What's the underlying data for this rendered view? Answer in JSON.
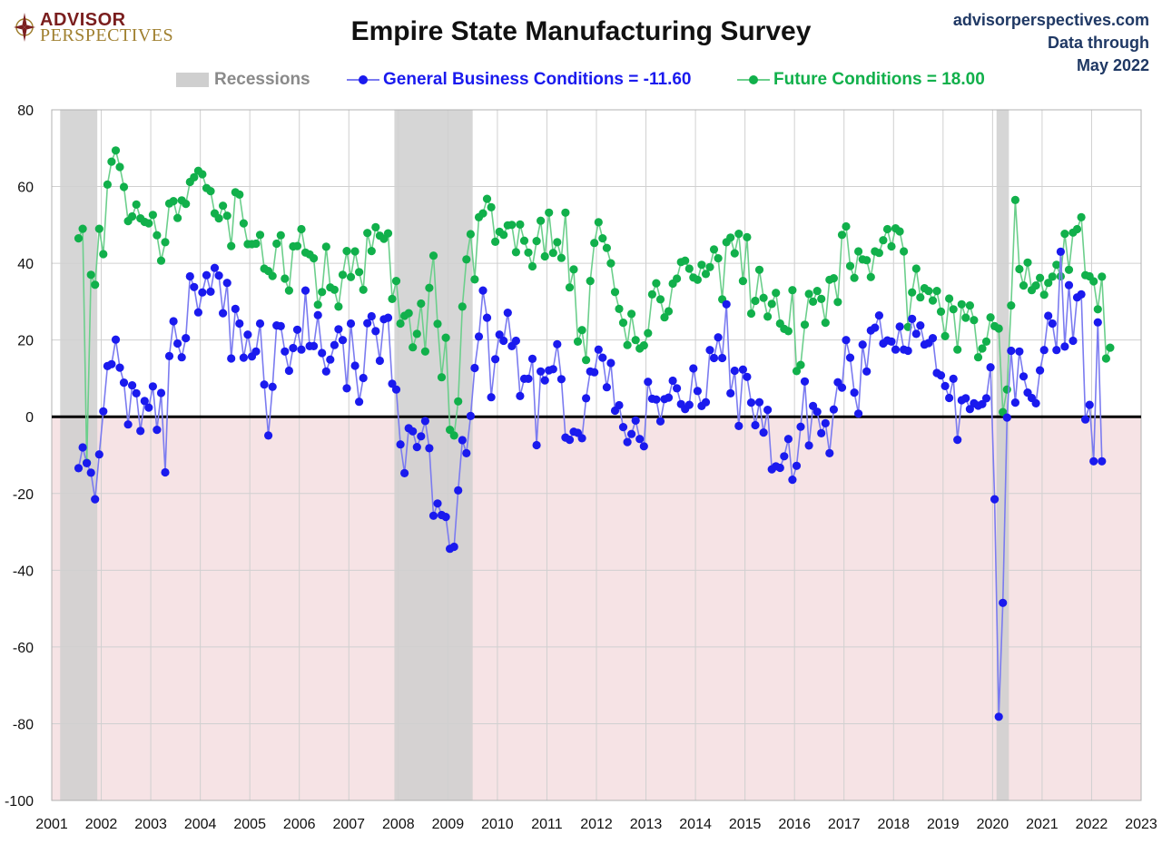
{
  "header": {
    "logo_line1": "ADVISOR",
    "logo_line2": "PERSPECTIVES",
    "title": "Empire State Manufacturing Survey",
    "site": "advisorperspectives.com",
    "data_through_label": "Data through",
    "data_through_date": "May 2022"
  },
  "legend": {
    "recessions": "Recessions",
    "general": "General Business Conditions = -11.60",
    "future": "Future Conditions = 18.00"
  },
  "colors": {
    "general": "#1a1aee",
    "general_line": "#7b7bf0",
    "future": "#11b04b",
    "future_line": "#6ccf8c",
    "recession": "#cfcfcf",
    "negative_zone": "#f6e3e5",
    "zero_line": "#000000",
    "grid": "#d0d0d0",
    "recession_label": "#8a8a8a"
  },
  "chart_data": {
    "type": "line",
    "x_axis_years": [
      "2001",
      "2002",
      "2003",
      "2004",
      "2005",
      "2006",
      "2007",
      "2008",
      "2009",
      "2010",
      "2011",
      "2012",
      "2013",
      "2014",
      "2015",
      "2016",
      "2017",
      "2018",
      "2019",
      "2020",
      "2021",
      "2022",
      "2023"
    ],
    "y_ticks": [
      "80",
      "60",
      "40",
      "20",
      "0",
      "-20",
      "-40",
      "-60",
      "-80",
      "-100"
    ],
    "ylim": [
      -100,
      80
    ],
    "xlim": [
      2001.0,
      2023.0
    ],
    "grid": "vertical and horizontal",
    "recessions": [
      [
        2001.17,
        2001.92
      ],
      [
        2007.92,
        2009.5
      ],
      [
        2020.08,
        2020.33
      ]
    ],
    "start": "2001-07",
    "end": "2022-05",
    "frequency": "monthly",
    "series": [
      {
        "name": "General Business Conditions",
        "values": [
          -13.4,
          -8.0,
          -12.1,
          -14.6,
          -21.5,
          -9.8,
          1.4,
          13.2,
          13.7,
          20.1,
          12.8,
          8.9,
          -2.0,
          8.2,
          6.1,
          -3.7,
          4.1,
          2.4,
          7.9,
          -3.4,
          6.2,
          -14.5,
          15.8,
          24.9,
          19.1,
          15.5,
          20.5,
          36.6,
          33.8,
          27.2,
          32.4,
          36.9,
          32.6,
          38.8,
          36.8,
          27.0,
          34.9,
          15.2,
          28.1,
          24.3,
          15.4,
          21.4,
          15.7,
          17.0,
          24.3,
          8.4,
          -4.9,
          7.8,
          23.8,
          23.6,
          17.0,
          12.0,
          17.9,
          22.7,
          17.5,
          32.9,
          18.4,
          18.4,
          26.5,
          16.6,
          11.8,
          14.9,
          18.7,
          22.8,
          20.0,
          7.4,
          24.3,
          13.3,
          3.9,
          10.1,
          24.4,
          26.2,
          22.3,
          14.6,
          25.4,
          25.8,
          8.6,
          7.1,
          -7.2,
          -14.7,
          -3.0,
          -3.8,
          -7.9,
          -5.1,
          -1.1,
          -8.2,
          -25.8,
          -22.6,
          -25.6,
          -26.1,
          -34.4,
          -33.9,
          -19.2,
          -6.1,
          -9.5,
          0.2,
          12.7,
          20.9,
          32.9,
          25.8,
          5.1,
          15.0,
          21.4,
          19.8,
          27.1,
          18.4,
          19.8,
          5.4,
          9.9,
          9.9,
          15.1,
          -7.4,
          11.8,
          9.5,
          12.1,
          12.4,
          18.9,
          9.8,
          -5.4,
          -6.0,
          -3.9,
          -4.2,
          -5.6,
          4.8,
          11.8,
          11.6,
          17.5,
          15.4,
          7.7,
          14.0,
          1.6,
          3.0,
          -2.7,
          -6.6,
          -4.5,
          -1.0,
          -5.8,
          -7.7,
          9.1,
          4.7,
          4.5,
          -1.2,
          4.6,
          5.0,
          9.4,
          7.4,
          3.3,
          2.0,
          3.1,
          12.6,
          6.7,
          2.8,
          3.8,
          17.4,
          15.3,
          20.7,
          15.3,
          29.3,
          6.1,
          12.0,
          -2.4,
          12.3,
          10.4,
          3.7,
          -2.2,
          3.8,
          -4.1,
          1.8,
          -13.7,
          -12.9,
          -13.3,
          -10.3,
          -5.8,
          -16.4,
          -12.8,
          -2.6,
          9.2,
          -7.5,
          2.8,
          1.3,
          -4.3,
          -1.7,
          -9.5,
          1.9,
          9.0,
          7.6,
          20.0,
          15.4,
          6.3,
          0.8,
          18.8,
          11.8,
          22.5,
          23.2,
          26.4,
          19.1,
          19.9,
          19.6,
          17.5,
          23.5,
          17.5,
          17.2,
          25.5,
          21.6,
          23.8,
          18.8,
          19.2,
          20.5,
          11.4,
          10.8,
          8.0,
          4.9,
          9.9,
          -6.0,
          4.3,
          4.8,
          2.0,
          3.5,
          2.9,
          3.3,
          4.8,
          12.9,
          -21.5,
          -78.2,
          -48.5,
          -0.2,
          17.2,
          3.7,
          17.0,
          10.5,
          6.3,
          4.9,
          3.5,
          12.1,
          17.4,
          26.3,
          24.3,
          17.4,
          43.0,
          18.3,
          34.3,
          19.8,
          31.1,
          31.9,
          -0.7,
          3.1,
          -11.6,
          24.6,
          -11.6
        ]
      },
      {
        "name": "Future Conditions",
        "values": [
          46.5,
          49.0,
          -12.0,
          37.0,
          34.4,
          49.0,
          42.4,
          60.5,
          66.5,
          69.4,
          65.1,
          59.9,
          51.0,
          52.2,
          55.3,
          51.7,
          50.8,
          50.4,
          52.6,
          47.3,
          40.7,
          45.5,
          55.6,
          56.2,
          51.8,
          56.4,
          55.5,
          61.2,
          62.4,
          64.1,
          63.2,
          59.6,
          58.8,
          53.0,
          51.7,
          55.0,
          52.4,
          44.5,
          58.5,
          57.9,
          50.4,
          45.0,
          45.0,
          45.1,
          47.4,
          38.6,
          38.0,
          36.7,
          45.1,
          47.3,
          36.0,
          32.9,
          44.4,
          44.5,
          48.9,
          42.8,
          42.3,
          41.3,
          29.2,
          32.5,
          44.3,
          33.7,
          33.1,
          28.7,
          37.0,
          43.2,
          36.4,
          43.1,
          37.7,
          33.1,
          47.9,
          43.2,
          49.4,
          47.2,
          46.4,
          47.8,
          30.7,
          35.4,
          24.3,
          26.3,
          27.0,
          18.1,
          21.6,
          29.5,
          17.0,
          33.6,
          42.0,
          24.2,
          10.3,
          20.6,
          -3.4,
          -4.9,
          4.0,
          28.7,
          41.0,
          47.6,
          35.8,
          52.0,
          53.0,
          56.8,
          54.6,
          45.6,
          48.2,
          47.4,
          49.9,
          50.0,
          42.9,
          50.1,
          45.9,
          42.8,
          39.2,
          45.8,
          51.1,
          41.8,
          53.2,
          42.7,
          45.5,
          41.4,
          53.2,
          33.7,
          38.4,
          19.6,
          22.6,
          14.8,
          35.4,
          45.3,
          50.7,
          46.5,
          44.0,
          40.0,
          32.5,
          28.1,
          24.5,
          18.7,
          26.8,
          20.0,
          17.8,
          18.6,
          21.8,
          31.9,
          34.8,
          30.6,
          25.9,
          27.5,
          34.7,
          36.0,
          40.3,
          40.7,
          38.6,
          36.3,
          35.7,
          39.6,
          37.2,
          39.0,
          43.6,
          41.3,
          30.6,
          45.5,
          46.7,
          42.6,
          47.7,
          35.4,
          46.8,
          26.9,
          30.2,
          38.3,
          31.0,
          26.1,
          29.4,
          32.3,
          24.3,
          22.9,
          22.3,
          33.0,
          11.9,
          13.5,
          24.0,
          32.0,
          30.0,
          32.8,
          30.7,
          24.5,
          35.7,
          36.1,
          29.9,
          47.4,
          49.6,
          39.3,
          36.2,
          43.1,
          41.0,
          40.8,
          36.4,
          43.1,
          42.7,
          46.0,
          48.9,
          44.4,
          49.1,
          48.3,
          43.1,
          23.4,
          32.4,
          38.6,
          31.1,
          33.5,
          32.8,
          30.3,
          32.8,
          27.4,
          21.0,
          30.8,
          28.0,
          17.5,
          29.3,
          25.8,
          29.0,
          25.2,
          15.5,
          17.8,
          19.6,
          25.9,
          23.6,
          23.0,
          1.2,
          7.1,
          29.0,
          56.5,
          38.5,
          34.2,
          40.2,
          33.0,
          34.2,
          36.2,
          31.8,
          34.9,
          36.5,
          39.6,
          36.6,
          47.7,
          38.3,
          48.0,
          48.9,
          52.0,
          36.9,
          36.6,
          35.3,
          28.0,
          36.5,
          15.2,
          18.0
        ]
      }
    ]
  }
}
